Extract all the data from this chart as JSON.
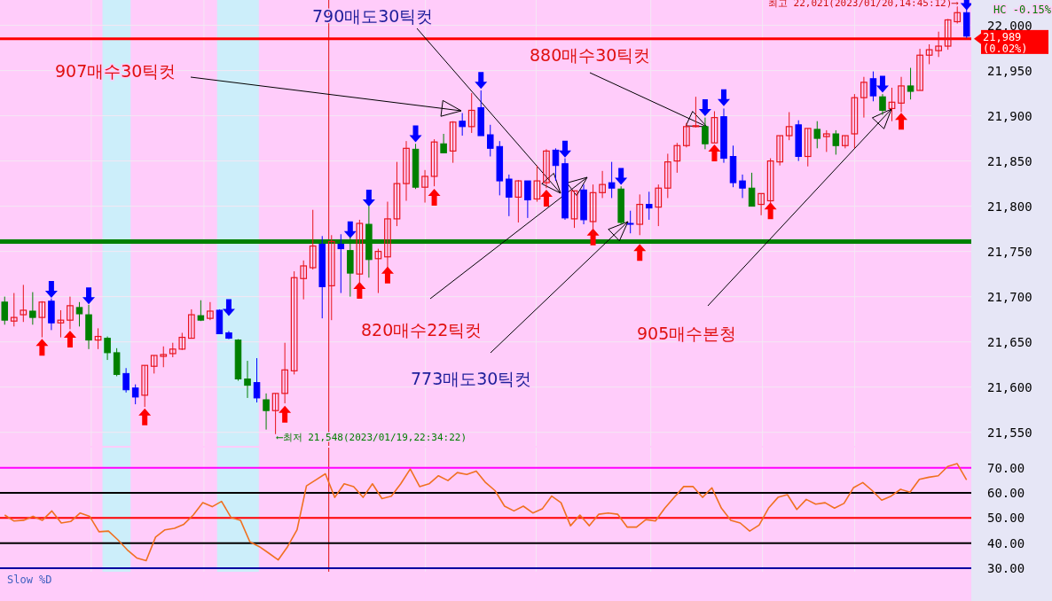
{
  "chart_data": [
    {
      "type": "candlestick",
      "categories": [
        null,
        null,
        null,
        null,
        null,
        null,
        null,
        null,
        null,
        null,
        null,
        null,
        null,
        null,
        null,
        null,
        null,
        null,
        null,
        null,
        null,
        null,
        null,
        null,
        null,
        null,
        null,
        null,
        null,
        null,
        null,
        null,
        null,
        null,
        null,
        null,
        null,
        null,
        null,
        null,
        null,
        null,
        null,
        null,
        null,
        null,
        null,
        null,
        null,
        null,
        null,
        null,
        null,
        null,
        null,
        null,
        null,
        null,
        null,
        null,
        null,
        null,
        null,
        null,
        null,
        null,
        null,
        null,
        null,
        null,
        null,
        null,
        null,
        null,
        null,
        null,
        null,
        null,
        null,
        null,
        null,
        null,
        null,
        null,
        null,
        null,
        null,
        null,
        null,
        null,
        null,
        null,
        null,
        null,
        null,
        null,
        null,
        null,
        null,
        null,
        null,
        null,
        null,
        null
      ],
      "ohlc": [
        [
          21694,
          21700,
          21669,
          21674
        ],
        [
          21673,
          21704,
          21667,
          21677
        ],
        [
          21680,
          21713,
          21672,
          21685
        ],
        [
          21684,
          21705,
          21669,
          21677
        ],
        [
          21677,
          21695,
          21655,
          21694
        ],
        [
          21695,
          21698,
          21663,
          21671
        ],
        [
          21671,
          21685,
          21655,
          21674
        ],
        [
          21674,
          21700,
          21664,
          21690
        ],
        [
          21688,
          21694,
          21667,
          21681
        ],
        [
          21680,
          21691,
          21642,
          21652
        ],
        [
          21652,
          21665,
          21642,
          21656
        ],
        [
          21654,
          21656,
          21630,
          21638
        ],
        [
          21638,
          21643,
          21612,
          21614
        ],
        [
          21615,
          21621,
          21594,
          21597
        ],
        [
          21599,
          21603,
          21581,
          21589
        ],
        [
          21591,
          21624,
          21578,
          21624
        ],
        [
          21623,
          21635,
          21615,
          21635
        ],
        [
          21634,
          21645,
          21622,
          21636
        ],
        [
          21637,
          21649,
          21633,
          21642
        ],
        [
          21642,
          21660,
          21641,
          21655
        ],
        [
          21654,
          21686,
          21654,
          21680
        ],
        [
          21679,
          21696,
          21673,
          21674
        ],
        [
          21676,
          21694,
          21674,
          21684
        ],
        [
          21685,
          21686,
          21659,
          21659
        ],
        [
          21660,
          21662,
          21653,
          21654
        ],
        [
          21652,
          21653,
          21607,
          21609
        ],
        [
          21609,
          21629,
          21588,
          21602
        ],
        [
          21605,
          21632,
          21583,
          21588
        ],
        [
          21586,
          21593,
          21553,
          21574
        ],
        [
          21574,
          21593,
          21548,
          21593
        ],
        [
          21593,
          21649,
          21582,
          21619
        ],
        [
          21618,
          21728,
          21614,
          21721
        ],
        [
          21720,
          21740,
          21697,
          21734
        ],
        [
          21732,
          21796,
          21730,
          21756
        ],
        [
          21758,
          21767,
          21676,
          21711
        ],
        [
          21712,
          21768,
          21674,
          21761
        ],
        [
          21758,
          21769,
          21704,
          21753
        ],
        [
          21751,
          21766,
          21700,
          21726
        ],
        [
          21725,
          21785,
          21711,
          21781
        ],
        [
          21780,
          21800,
          21721,
          21741
        ],
        [
          21742,
          21753,
          21704,
          21750
        ],
        [
          21744,
          21805,
          21732,
          21786
        ],
        [
          21786,
          21849,
          21778,
          21825
        ],
        [
          21825,
          21872,
          21806,
          21864
        ],
        [
          21863,
          21869,
          21819,
          21821
        ],
        [
          21821,
          21840,
          21804,
          21833
        ],
        [
          21833,
          21874,
          21822,
          21871
        ],
        [
          21869,
          21880,
          21859,
          21859
        ],
        [
          21861,
          21894,
          21848,
          21893
        ],
        [
          21894,
          21903,
          21878,
          21888
        ],
        [
          21888,
          21925,
          21881,
          21906
        ],
        [
          21909,
          21928,
          21878,
          21878
        ],
        [
          21879,
          21890,
          21855,
          21864
        ],
        [
          21866,
          21872,
          21812,
          21828
        ],
        [
          21830,
          21835,
          21789,
          21810
        ],
        [
          21810,
          21829,
          21782,
          21828
        ],
        [
          21828,
          21828,
          21787,
          21807
        ],
        [
          21808,
          21845,
          21805,
          21828
        ],
        [
          21826,
          21863,
          21820,
          21861
        ],
        [
          21862,
          21864,
          21828,
          21845
        ],
        [
          21847,
          21853,
          21785,
          21787
        ],
        [
          21786,
          21817,
          21776,
          21817
        ],
        [
          21818,
          21824,
          21780,
          21785
        ],
        [
          21783,
          21824,
          21768,
          21815
        ],
        [
          21815,
          21839,
          21809,
          21824
        ],
        [
          21826,
          21849,
          21809,
          21820
        ],
        [
          21819,
          21822,
          21780,
          21782
        ],
        [
          21781,
          21795,
          21770,
          21780
        ],
        [
          21780,
          21813,
          21768,
          21802
        ],
        [
          21802,
          21816,
          21785,
          21798
        ],
        [
          21799,
          21824,
          21778,
          21820
        ],
        [
          21820,
          21858,
          21809,
          21849
        ],
        [
          21850,
          21870,
          21837,
          21867
        ],
        [
          21867,
          21892,
          21865,
          21888
        ],
        [
          21888,
          21921,
          21887,
          21889
        ],
        [
          21888,
          21898,
          21863,
          21869
        ],
        [
          21870,
          21905,
          21870,
          21898
        ],
        [
          21899,
          21908,
          21848,
          21853
        ],
        [
          21855,
          21867,
          21821,
          21826
        ],
        [
          21828,
          21835,
          21809,
          21820
        ],
        [
          21820,
          21837,
          21800,
          21800
        ],
        [
          21802,
          21814,
          21790,
          21814
        ],
        [
          21806,
          21853,
          21802,
          21850
        ],
        [
          21849,
          21878,
          21845,
          21878
        ],
        [
          21878,
          21904,
          21873,
          21888
        ],
        [
          21890,
          21895,
          21850,
          21855
        ],
        [
          21855,
          21886,
          21844,
          21886
        ],
        [
          21885,
          21894,
          21864,
          21875
        ],
        [
          21877,
          21884,
          21860,
          21880
        ],
        [
          21880,
          21884,
          21857,
          21867
        ],
        [
          21867,
          21878,
          21864,
          21878
        ],
        [
          21880,
          21924,
          21864,
          21920
        ],
        [
          21920,
          21943,
          21898,
          21937
        ],
        [
          21941,
          21949,
          21916,
          21922
        ],
        [
          21921,
          21924,
          21901,
          21906
        ],
        [
          21908,
          21931,
          21894,
          21915
        ],
        [
          21914,
          21943,
          21904,
          21933
        ],
        [
          21933,
          21953,
          21918,
          21927
        ],
        [
          21928,
          21974,
          21928,
          21967
        ],
        [
          21967,
          21979,
          21957,
          21973
        ],
        [
          21972,
          21993,
          21965,
          21977
        ],
        [
          21977,
          22007,
          21973,
          22006
        ],
        [
          22004,
          22021,
          22002,
          22014
        ],
        [
          22014,
          22021,
          21986,
          21988
        ]
      ],
      "colors": [
        "#008000",
        "#e8141c",
        "#e8141c",
        "#008000",
        "#e8141c",
        "#0000ff",
        "#e8141c",
        "#e8141c",
        "#008000",
        "#008000",
        "#e8141c",
        "#008000",
        "#008000",
        "#0000ff",
        "#0000ff",
        "#e8141c",
        "#e8141c",
        "#e8141c",
        "#e8141c",
        "#e8141c",
        "#e8141c",
        "#008000",
        "#e8141c",
        "#0000ff",
        "#0000ff",
        "#008000",
        "#008000",
        "#0000ff",
        "#008000",
        "#e8141c",
        "#e8141c",
        "#e8141c",
        "#e8141c",
        "#e8141c",
        "#0000ff",
        "#e8141c",
        "#0000ff",
        "#008000",
        "#e8141c",
        "#008000",
        "#e8141c",
        "#e8141c",
        "#e8141c",
        "#e8141c",
        "#008000",
        "#e8141c",
        "#e8141c",
        "#008000",
        "#e8141c",
        "#0000ff",
        "#e8141c",
        "#0000ff",
        "#0000ff",
        "#0000ff",
        "#0000ff",
        "#e8141c",
        "#0000ff",
        "#e8141c",
        "#e8141c",
        "#0000ff",
        "#0000ff",
        "#e8141c",
        "#0000ff",
        "#e8141c",
        "#e8141c",
        "#0000ff",
        "#008000",
        "#0000ff",
        "#e8141c",
        "#0000ff",
        "#e8141c",
        "#e8141c",
        "#e8141c",
        "#e8141c",
        "#e8141c",
        "#008000",
        "#e8141c",
        "#0000ff",
        "#0000ff",
        "#0000ff",
        "#008000",
        "#e8141c",
        "#e8141c",
        "#e8141c",
        "#e8141c",
        "#0000ff",
        "#e8141c",
        "#008000",
        "#e8141c",
        "#008000",
        "#e8141c",
        "#e8141c",
        "#e8141c",
        "#0000ff",
        "#008000",
        "#e8141c",
        "#e8141c",
        "#008000",
        "#e8141c",
        "#e8141c",
        "#e8141c",
        "#e8141c",
        "#e8141c",
        "#0000ff"
      ],
      "series": [
        {
          "type": "scatter",
          "color": "#ff0000",
          "values": [
            null,
            null,
            null,
            null,
            21644,
            null,
            null,
            21653,
            null,
            null,
            null,
            null,
            null,
            null,
            null,
            21567,
            null,
            null,
            null,
            null,
            null,
            null,
            null,
            null,
            null,
            null,
            null,
            null,
            null,
            null,
            21570,
            null,
            null,
            null,
            null,
            null,
            null,
            null,
            21707,
            null,
            null,
            21724,
            null,
            null,
            null,
            null,
            21810,
            null,
            null,
            null,
            null,
            null,
            null,
            null,
            null,
            null,
            null,
            null,
            21809,
            null,
            null,
            null,
            null,
            21766,
            null,
            null,
            null,
            null,
            21749,
            null,
            null,
            null,
            null,
            null,
            null,
            null,
            21859,
            null,
            null,
            null,
            null,
            null,
            21795,
            null,
            null,
            null,
            null,
            null,
            null,
            null,
            null,
            null,
            null,
            null,
            null,
            null,
            21894,
            null,
            null,
            null,
            null,
            null,
            null,
            null
          ]
        },
        {
          "type": "scatter",
          "color": "#0000ff",
          "values": [
            null,
            null,
            null,
            null,
            null,
            21708,
            null,
            null,
            null,
            21701,
            null,
            null,
            null,
            null,
            null,
            null,
            null,
            null,
            null,
            null,
            null,
            null,
            null,
            null,
            21688,
            null,
            null,
            null,
            null,
            null,
            null,
            null,
            null,
            null,
            null,
            null,
            null,
            21774,
            null,
            21809,
            null,
            null,
            null,
            null,
            21880,
            null,
            null,
            null,
            null,
            null,
            null,
            21939,
            null,
            null,
            null,
            null,
            null,
            null,
            null,
            null,
            21863,
            null,
            null,
            null,
            null,
            null,
            21833,
            null,
            null,
            null,
            null,
            null,
            null,
            null,
            null,
            21909,
            null,
            21920,
            null,
            null,
            null,
            null,
            null,
            null,
            null,
            null,
            null,
            null,
            null,
            null,
            null,
            null,
            null,
            null,
            21935,
            null,
            null,
            null,
            null,
            null,
            null,
            null,
            null,
            22026
          ]
        }
      ],
      "ylim": [
        21535,
        22028
      ],
      "yticks": [
        {
          "value": 21550,
          "label": "21,550"
        },
        {
          "value": 21600,
          "label": "21,600"
        },
        {
          "value": 21650,
          "label": "21,650"
        },
        {
          "value": 21700,
          "label": "21,700"
        },
        {
          "value": 21750,
          "label": "21,750"
        },
        {
          "value": 21800,
          "label": "21,800"
        },
        {
          "value": 21850,
          "label": "21,850"
        },
        {
          "value": 21900,
          "label": "21,900"
        },
        {
          "value": 21950,
          "label": "21,950"
        },
        {
          "value": 22000,
          "label": "22,000"
        }
      ],
      "tick_labels": "y",
      "grid": true,
      "ref_lines": [
        {
          "axis": "y",
          "value": 21985,
          "label": null,
          "color": "#ff0000"
        },
        {
          "axis": "y",
          "value": 21761,
          "label": null,
          "color": "#008000"
        }
      ],
      "annotations": [
        "790매도30틱컷",
        "907매수30틱컷",
        "880매수30틱컷",
        "820매수22틱컷",
        "773매도30틱컷",
        "905매수본청",
        "최고 22,021(2023/01/20,14:45:12)⟶",
        "⟵최저 21,548(2023/01/19,22:34:22)",
        "21,989 (0.02%)",
        "HC  -0.15%"
      ]
    },
    {
      "type": "line",
      "categories": [
        null,
        null,
        null,
        null,
        null,
        null,
        null,
        null,
        null,
        null,
        null,
        null,
        null,
        null,
        null,
        null,
        null,
        null,
        null,
        null,
        null,
        null,
        null,
        null,
        null,
        null,
        null,
        null,
        null,
        null,
        null,
        null,
        null,
        null,
        null,
        null,
        null,
        null,
        null,
        null,
        null,
        null,
        null,
        null,
        null,
        null,
        null,
        null,
        null,
        null,
        null,
        null,
        null,
        null,
        null,
        null,
        null,
        null,
        null,
        null,
        null,
        null,
        null,
        null,
        null,
        null,
        null,
        null,
        null,
        null,
        null,
        null,
        null,
        null,
        null,
        null,
        null,
        null,
        null,
        null,
        null,
        null,
        null,
        null,
        null,
        null,
        null,
        null,
        null,
        null,
        null,
        null,
        null,
        null,
        null,
        null,
        null,
        null,
        null,
        null,
        null,
        null,
        null
      ],
      "series": [
        {
          "color": "#f07020",
          "values": [
            51.2,
            48.8,
            49.1,
            50.7,
            49.1,
            52.8,
            48.0,
            48.6,
            52.0,
            50.7,
            44.5,
            44.8,
            41.3,
            37.3,
            34.1,
            33.0,
            42.4,
            45.3,
            45.9,
            47.5,
            51.2,
            56.1,
            54.5,
            56.6,
            50.2,
            49.1,
            40.5,
            38.6,
            36.0,
            33.3,
            38.6,
            45.3,
            62.8,
            65.2,
            67.6,
            58.2,
            63.6,
            62.5,
            58.2,
            63.6,
            57.7,
            58.7,
            63.6,
            69.5,
            62.5,
            63.6,
            66.8,
            64.9,
            68.1,
            67.3,
            68.7,
            64.1,
            60.9,
            54.7,
            52.8,
            54.7,
            52.0,
            53.6,
            58.7,
            56.1,
            46.9,
            51.2,
            46.9,
            51.5,
            52.0,
            51.5,
            46.4,
            46.4,
            49.4,
            48.8,
            53.9,
            58.2,
            62.5,
            62.5,
            58.2,
            62.0,
            53.9,
            49.1,
            48.0,
            44.8,
            47.2,
            53.9,
            58.2,
            59.3,
            53.4,
            57.4,
            55.5,
            56.1,
            53.9,
            55.8,
            62.0,
            64.1,
            60.9,
            57.1,
            58.7,
            61.4,
            60.3,
            65.4,
            66.2,
            66.8,
            70.5,
            71.6,
            65.2
          ]
        }
      ],
      "ylim": [
        28.6,
        78
      ],
      "yticks": [
        {
          "value": 30,
          "label": "30.00"
        },
        {
          "value": 40,
          "label": "40.00"
        },
        {
          "value": 50,
          "label": "50.00"
        },
        {
          "value": 60,
          "label": "60.00"
        },
        {
          "value": 70,
          "label": "70.00"
        }
      ],
      "tick_labels": "y",
      "grid": true,
      "marker": "none",
      "ref_lines": [
        {
          "axis": "y",
          "value": 70,
          "label": null,
          "color": "#ff00ff"
        },
        {
          "axis": "y",
          "value": 60,
          "label": null,
          "color": "#000000"
        },
        {
          "axis": "y",
          "value": 50,
          "label": null,
          "color": "#ff0000"
        },
        {
          "axis": "y",
          "value": 40,
          "label": null,
          "color": "#000000"
        },
        {
          "axis": "y",
          "value": 30,
          "label": null,
          "color": "#0000a0"
        }
      ],
      "annotations": [
        "Slow %D"
      ]
    }
  ]
}
